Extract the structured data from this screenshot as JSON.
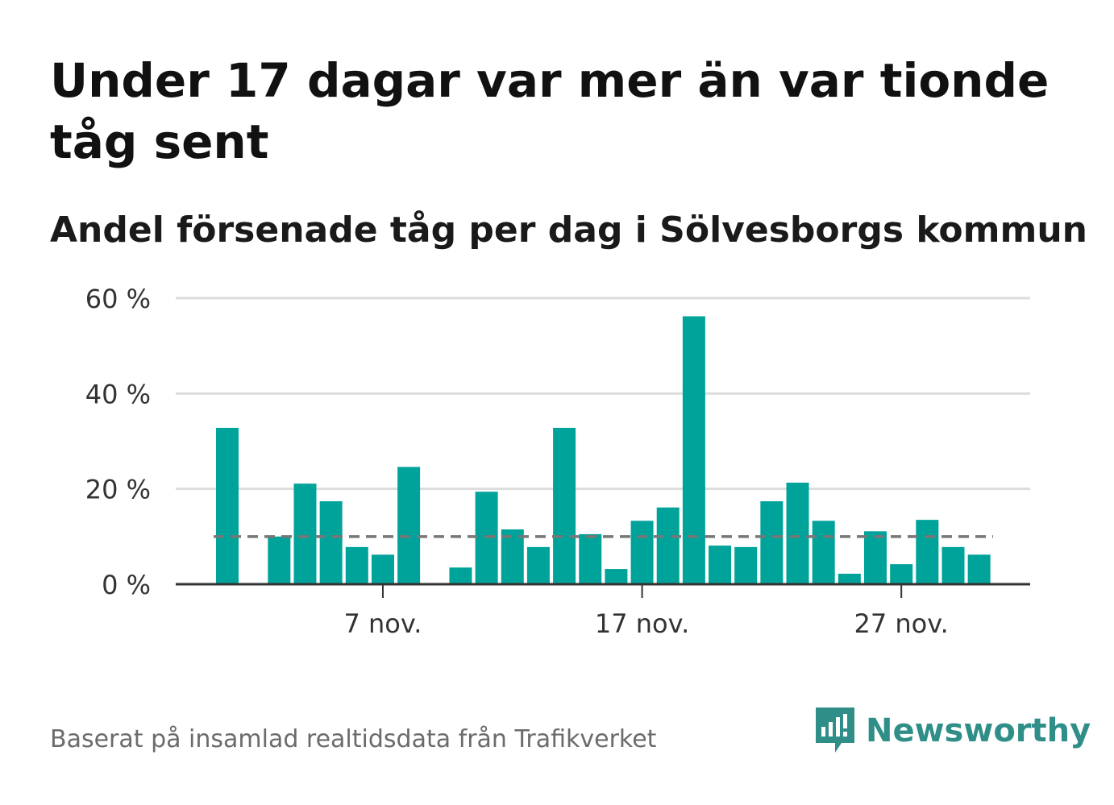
{
  "header": {
    "title": "Under 17 dagar var mer än var tionde tåg sent",
    "subtitle": "Andel försenade tåg per dag i Sölvesborgs kommun"
  },
  "footer": {
    "source": "Baserat på insamlad realtidsdata från Trafikverket",
    "brand": "Newsworthy"
  },
  "colors": {
    "bar": "#00a39a",
    "grid": "#dddddd",
    "axis": "#333333",
    "reference_line": "#777777",
    "brand": "#2f8f88"
  },
  "chart_data": {
    "type": "bar",
    "title": "Andel försenade tåg per dag i Sölvesborgs kommun",
    "xlabel": "",
    "ylabel": "",
    "ylim": [
      0,
      60
    ],
    "yticks": [
      0,
      20,
      40,
      60
    ],
    "ytick_labels": [
      "0 %",
      "20 %",
      "40 %",
      "60 %"
    ],
    "days": [
      1,
      2,
      3,
      4,
      5,
      6,
      7,
      8,
      9,
      10,
      11,
      12,
      13,
      14,
      15,
      16,
      17,
      18,
      19,
      20,
      21,
      22,
      23,
      24,
      25,
      26,
      27,
      28,
      29,
      30
    ],
    "values": [
      32.8,
      0,
      10.0,
      21.1,
      17.4,
      7.8,
      6.2,
      24.6,
      0,
      3.5,
      19.4,
      11.5,
      7.8,
      32.8,
      10.5,
      3.2,
      13.3,
      16.1,
      56.2,
      8.1,
      7.8,
      17.4,
      21.3,
      13.3,
      2.2,
      11.1,
      4.2,
      13.5,
      7.8,
      6.2
    ],
    "xtick_days": [
      7,
      17,
      27
    ],
    "xtick_labels": [
      "7 nov.",
      "17 nov.",
      "27 nov."
    ],
    "reference_line": 10,
    "grid": true,
    "legend": "none"
  }
}
